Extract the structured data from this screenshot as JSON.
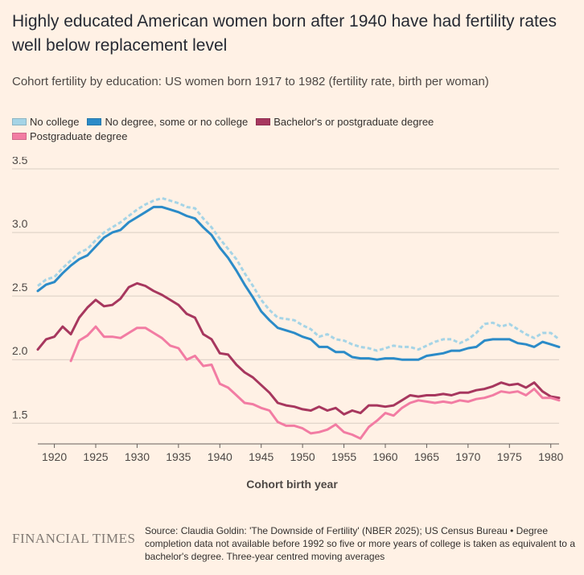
{
  "title": "Highly educated American women born after 1940 have had fertility rates well below replacement level",
  "subtitle": "Cohort fertility by education: US women born 1917 to 1982 (fertility rate, birth per woman)",
  "colors": {
    "background": "#fff1e5",
    "grid": "#d9cec3",
    "axis": "#66605c",
    "no_college": "#a5d4e6",
    "no_degree": "#2b8bc8",
    "bachelors": "#a7375e",
    "postgraduate": "#f27ca3"
  },
  "legend": [
    {
      "label": "No college",
      "color": "#a5d4e6"
    },
    {
      "label": "No degree, some or no college",
      "color": "#2b8bc8"
    },
    {
      "label": "Bachelor's or postgraduate degree",
      "color": "#a7375e"
    },
    {
      "label": "Postgraduate degree",
      "color": "#f27ca3"
    }
  ],
  "footer": {
    "logo": "FINANCIAL TIMES",
    "source": "Source: Claudia Goldin: 'The Downside of Fertility' (NBER 2025); US Census Bureau • Degree completion data not available before 1992 so five or more years of college is taken as equivalent to a bachelor's degree. Three-year centred moving averages"
  },
  "chart_data": {
    "type": "line",
    "title": "Cohort fertility by education",
    "xlabel": "Cohort birth year",
    "ylabel": "",
    "xlim": [
      1918,
      1981
    ],
    "ylim": [
      1.35,
      3.5
    ],
    "xticks": [
      1920,
      1925,
      1930,
      1935,
      1940,
      1945,
      1950,
      1955,
      1960,
      1965,
      1970,
      1975,
      1980
    ],
    "yticks": [
      1.5,
      2.0,
      2.5,
      3.0,
      3.5
    ],
    "grid": true,
    "legend_position": "top",
    "series": [
      {
        "name": "No college",
        "style": "dotted",
        "x": [
          1918,
          1919,
          1920,
          1921,
          1922,
          1923,
          1924,
          1925,
          1926,
          1927,
          1928,
          1929,
          1930,
          1931,
          1932,
          1933,
          1934,
          1935,
          1936,
          1937,
          1938,
          1939,
          1940,
          1941,
          1942,
          1943,
          1944,
          1945,
          1946,
          1947,
          1948,
          1949,
          1950,
          1951,
          1952,
          1953,
          1954,
          1955,
          1956,
          1957,
          1958,
          1959,
          1960,
          1961,
          1962,
          1963,
          1964,
          1965,
          1966,
          1967,
          1968,
          1969,
          1970,
          1971,
          1972,
          1973,
          1974,
          1975,
          1976,
          1977,
          1978,
          1979,
          1980,
          1981
        ],
        "values": [
          2.58,
          2.63,
          2.65,
          2.72,
          2.78,
          2.84,
          2.87,
          2.94,
          3.0,
          3.04,
          3.08,
          3.13,
          3.18,
          3.22,
          3.25,
          3.27,
          3.25,
          3.23,
          3.2,
          3.19,
          3.11,
          3.04,
          2.95,
          2.87,
          2.79,
          2.68,
          2.58,
          2.47,
          2.39,
          2.33,
          2.32,
          2.31,
          2.27,
          2.24,
          2.18,
          2.2,
          2.16,
          2.15,
          2.12,
          2.1,
          2.09,
          2.07,
          2.09,
          2.11,
          2.1,
          2.1,
          2.08,
          2.11,
          2.14,
          2.16,
          2.16,
          2.13,
          2.16,
          2.21,
          2.28,
          2.29,
          2.26,
          2.28,
          2.24,
          2.2,
          2.17,
          2.21,
          2.21,
          2.16
        ]
      },
      {
        "name": "No degree, some or no college",
        "style": "solid",
        "x": [
          1918,
          1919,
          1920,
          1921,
          1922,
          1923,
          1924,
          1925,
          1926,
          1927,
          1928,
          1929,
          1930,
          1931,
          1932,
          1933,
          1934,
          1935,
          1936,
          1937,
          1938,
          1939,
          1940,
          1941,
          1942,
          1943,
          1944,
          1945,
          1946,
          1947,
          1948,
          1949,
          1950,
          1951,
          1952,
          1953,
          1954,
          1955,
          1956,
          1957,
          1958,
          1959,
          1960,
          1961,
          1962,
          1963,
          1964,
          1965,
          1966,
          1967,
          1968,
          1969,
          1970,
          1971,
          1972,
          1973,
          1974,
          1975,
          1976,
          1977,
          1978,
          1979,
          1980,
          1981
        ],
        "values": [
          2.54,
          2.59,
          2.61,
          2.68,
          2.74,
          2.79,
          2.82,
          2.89,
          2.96,
          3.0,
          3.02,
          3.08,
          3.12,
          3.16,
          3.2,
          3.2,
          3.18,
          3.16,
          3.13,
          3.11,
          3.04,
          2.98,
          2.88,
          2.8,
          2.7,
          2.59,
          2.49,
          2.38,
          2.31,
          2.25,
          2.23,
          2.21,
          2.18,
          2.16,
          2.1,
          2.1,
          2.06,
          2.06,
          2.02,
          2.01,
          2.01,
          2.0,
          2.01,
          2.01,
          2.0,
          2.0,
          2.0,
          2.03,
          2.04,
          2.05,
          2.07,
          2.07,
          2.09,
          2.1,
          2.15,
          2.16,
          2.16,
          2.16,
          2.13,
          2.12,
          2.1,
          2.14,
          2.12,
          2.1
        ]
      },
      {
        "name": "Bachelor's or postgraduate degree",
        "style": "solid",
        "x": [
          1918,
          1919,
          1920,
          1921,
          1922,
          1923,
          1924,
          1925,
          1926,
          1927,
          1928,
          1929,
          1930,
          1931,
          1932,
          1933,
          1934,
          1935,
          1936,
          1937,
          1938,
          1939,
          1940,
          1941,
          1942,
          1943,
          1944,
          1945,
          1946,
          1947,
          1948,
          1949,
          1950,
          1951,
          1952,
          1953,
          1954,
          1955,
          1956,
          1957,
          1958,
          1959,
          1960,
          1961,
          1962,
          1963,
          1964,
          1965,
          1966,
          1967,
          1968,
          1969,
          1970,
          1971,
          1972,
          1973,
          1974,
          1975,
          1976,
          1977,
          1978,
          1979,
          1980,
          1981
        ],
        "values": [
          2.08,
          2.16,
          2.18,
          2.26,
          2.2,
          2.33,
          2.41,
          2.47,
          2.42,
          2.43,
          2.48,
          2.57,
          2.6,
          2.58,
          2.54,
          2.51,
          2.47,
          2.43,
          2.36,
          2.33,
          2.2,
          2.16,
          2.05,
          2.04,
          1.96,
          1.9,
          1.86,
          1.8,
          1.74,
          1.66,
          1.64,
          1.63,
          1.61,
          1.6,
          1.63,
          1.6,
          1.62,
          1.57,
          1.6,
          1.58,
          1.64,
          1.64,
          1.63,
          1.64,
          1.68,
          1.72,
          1.71,
          1.72,
          1.72,
          1.73,
          1.72,
          1.74,
          1.74,
          1.76,
          1.77,
          1.79,
          1.82,
          1.8,
          1.81,
          1.78,
          1.82,
          1.75,
          1.71,
          1.7
        ]
      },
      {
        "name": "Postgraduate degree",
        "style": "solid",
        "x": [
          1922,
          1923,
          1924,
          1925,
          1926,
          1927,
          1928,
          1929,
          1930,
          1931,
          1932,
          1933,
          1934,
          1935,
          1936,
          1937,
          1938,
          1939,
          1940,
          1941,
          1942,
          1943,
          1944,
          1945,
          1946,
          1947,
          1948,
          1949,
          1950,
          1951,
          1952,
          1953,
          1954,
          1955,
          1956,
          1957,
          1958,
          1959,
          1960,
          1961,
          1962,
          1963,
          1964,
          1965,
          1966,
          1967,
          1968,
          1969,
          1970,
          1971,
          1972,
          1973,
          1974,
          1975,
          1976,
          1977,
          1978,
          1979,
          1980,
          1981
        ],
        "values": [
          1.99,
          2.15,
          2.19,
          2.26,
          2.18,
          2.18,
          2.17,
          2.21,
          2.25,
          2.25,
          2.21,
          2.17,
          2.11,
          2.09,
          2.0,
          2.03,
          1.95,
          1.96,
          1.81,
          1.78,
          1.72,
          1.66,
          1.65,
          1.62,
          1.6,
          1.51,
          1.48,
          1.48,
          1.46,
          1.42,
          1.43,
          1.45,
          1.49,
          1.43,
          1.41,
          1.38,
          1.47,
          1.52,
          1.58,
          1.56,
          1.62,
          1.66,
          1.68,
          1.67,
          1.66,
          1.67,
          1.66,
          1.68,
          1.67,
          1.69,
          1.7,
          1.72,
          1.75,
          1.74,
          1.75,
          1.72,
          1.77,
          1.7,
          1.7,
          1.68
        ]
      }
    ]
  }
}
